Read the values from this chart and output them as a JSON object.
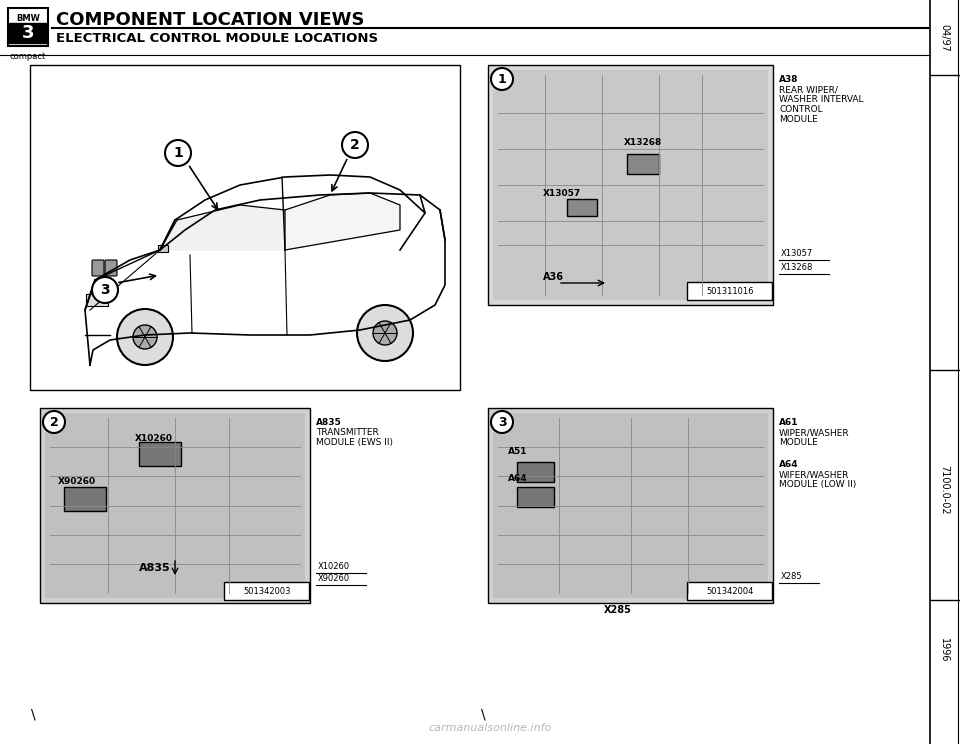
{
  "title_main": "COMPONENT LOCATION VIEWS",
  "title_sub": "ELECTRICAL CONTROL MODULE LOCATIONS",
  "bmw_logo_text": "BMW",
  "bmw_model": "3",
  "bmw_sub": "compact",
  "page_code_top": "04/97",
  "page_code_mid": "7100.0-02",
  "page_code_bot": "1996",
  "bg_color": "#ffffff",
  "diagram1_notes": [
    "A38",
    "REAR WIPER/",
    "WASHER INTERVAL",
    "CONTROL",
    "MODULE"
  ],
  "diagram1_connectors": [
    "X13057",
    "X13268"
  ],
  "diagram1_serial": "501311016",
  "diagram2_notes": [
    "A835",
    "TRANSMITTER",
    "MODULE (EWS II)"
  ],
  "diagram2_connectors": [
    "X10260",
    "X90260"
  ],
  "diagram2_serial": "501342003",
  "diagram3_notes_top": [
    "A61",
    "WIPER/WASHER",
    "MODULE"
  ],
  "diagram3_notes_bot": [
    "A64",
    "WIFER/WASHER",
    "MODULE (LOW II)"
  ],
  "diagram3_connectors": [
    "X285"
  ],
  "diagram3_serial": "501342004",
  "watermark": "carmanualsonline.info"
}
